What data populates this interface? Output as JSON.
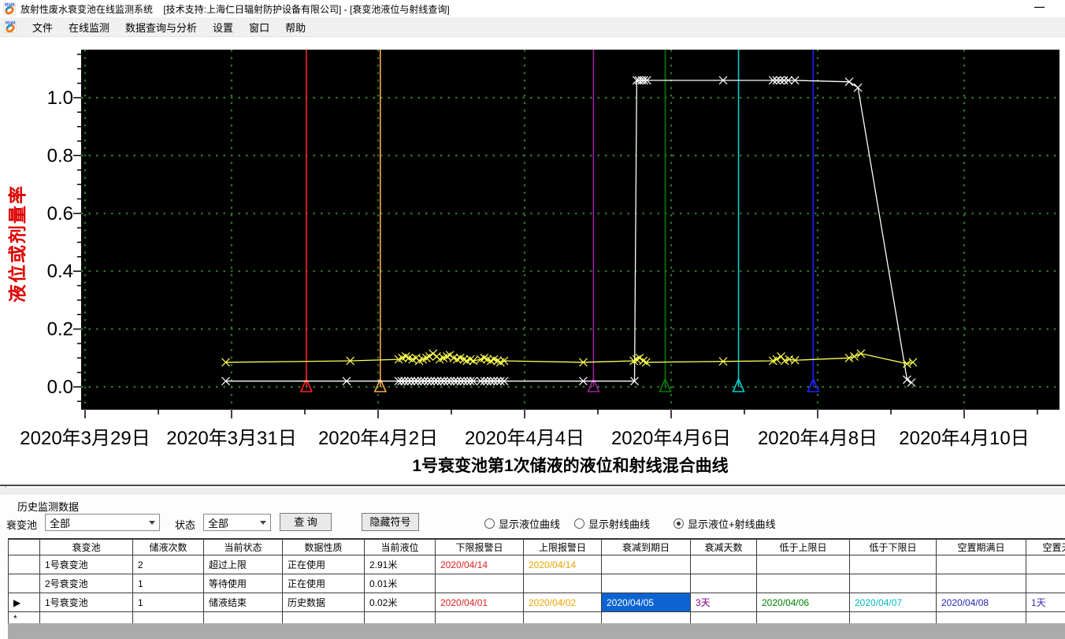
{
  "window": {
    "title": "放射性废水衰变池在线监测系统    [技术支持:上海仁日辐射防护设备有限公司] - [衰变池液位与射线查询]",
    "minimize_glyph": "—"
  },
  "menu": {
    "items": [
      "文件",
      "在线监测",
      "数据查询与分析",
      "设置",
      "窗口",
      "帮助"
    ]
  },
  "chart_data": {
    "type": "line",
    "title": "1号衰变池第1次储液的液位和射线混合曲线",
    "ylabel": "液位或剂量率",
    "ylabel_color": "#dd0000",
    "plot_bg": "#000000",
    "grid_color": "#2b7a2b",
    "grid": "dotted",
    "x_day0": "2020-03-29",
    "x_tick_labels": [
      "2020年3月29日",
      "2020年3月31日",
      "2020年4月2日",
      "2020年4月4日",
      "2020年4月6日",
      "2020年4月8日",
      "2020年4月10日"
    ],
    "x_tick_days": [
      0,
      2,
      4,
      6,
      8,
      10,
      12
    ],
    "x_minor_step_days": 1,
    "xlim_days": [
      -0.05,
      13.3
    ],
    "y_ticks": [
      0.0,
      0.2,
      0.4,
      0.6,
      0.8,
      1.0
    ],
    "ylim": [
      -0.079,
      1.166
    ],
    "marker": "x",
    "series": [
      {
        "name": "液位曲线",
        "color": "#ffffff",
        "points": [
          [
            1.92,
            0.02
          ],
          [
            3.57,
            0.02
          ],
          [
            4.28,
            0.02
          ],
          [
            4.32,
            0.02
          ],
          [
            4.36,
            0.02
          ],
          [
            4.41,
            0.02
          ],
          [
            4.45,
            0.02
          ],
          [
            4.5,
            0.02
          ],
          [
            4.54,
            0.02
          ],
          [
            4.59,
            0.02
          ],
          [
            4.63,
            0.02
          ],
          [
            4.68,
            0.02
          ],
          [
            4.72,
            0.02
          ],
          [
            4.77,
            0.02
          ],
          [
            4.81,
            0.02
          ],
          [
            4.86,
            0.02
          ],
          [
            4.9,
            0.02
          ],
          [
            4.95,
            0.02
          ],
          [
            4.99,
            0.02
          ],
          [
            5.04,
            0.02
          ],
          [
            5.08,
            0.02
          ],
          [
            5.13,
            0.02
          ],
          [
            5.17,
            0.02
          ],
          [
            5.22,
            0.02
          ],
          [
            5.26,
            0.02
          ],
          [
            5.3,
            0.02
          ],
          [
            5.4,
            0.02
          ],
          [
            5.45,
            0.02
          ],
          [
            5.49,
            0.02
          ],
          [
            5.54,
            0.02
          ],
          [
            5.58,
            0.02
          ],
          [
            5.63,
            0.02
          ],
          [
            5.67,
            0.02
          ],
          [
            5.72,
            0.02
          ],
          [
            6.8,
            0.02
          ],
          [
            7.5,
            0.02
          ],
          [
            7.53,
            1.06
          ],
          [
            7.56,
            1.06
          ],
          [
            7.6,
            1.06
          ],
          [
            7.63,
            1.06
          ],
          [
            7.67,
            1.06
          ],
          [
            8.71,
            1.06
          ],
          [
            9.39,
            1.06
          ],
          [
            9.44,
            1.06
          ],
          [
            9.49,
            1.06
          ],
          [
            9.54,
            1.06
          ],
          [
            9.6,
            1.06
          ],
          [
            9.69,
            1.06
          ],
          [
            10.43,
            1.055
          ],
          [
            10.55,
            1.035
          ],
          [
            11.22,
            0.025
          ],
          [
            11.28,
            0.015
          ]
        ]
      },
      {
        "name": "射线曲线",
        "color": "#ffff55",
        "points": [
          [
            1.92,
            0.085
          ],
          [
            3.62,
            0.09
          ],
          [
            4.28,
            0.095
          ],
          [
            4.33,
            0.1
          ],
          [
            4.38,
            0.105
          ],
          [
            4.42,
            0.1
          ],
          [
            4.47,
            0.095
          ],
          [
            4.52,
            0.1
          ],
          [
            4.56,
            0.09
          ],
          [
            4.61,
            0.095
          ],
          [
            4.66,
            0.1
          ],
          [
            4.7,
            0.105
          ],
          [
            4.75,
            0.115
          ],
          [
            4.8,
            0.105
          ],
          [
            4.84,
            0.095
          ],
          [
            4.89,
            0.1
          ],
          [
            4.94,
            0.105
          ],
          [
            4.98,
            0.11
          ],
          [
            5.03,
            0.1
          ],
          [
            5.08,
            0.095
          ],
          [
            5.12,
            0.1
          ],
          [
            5.17,
            0.095
          ],
          [
            5.21,
            0.09
          ],
          [
            5.26,
            0.095
          ],
          [
            5.3,
            0.09
          ],
          [
            5.4,
            0.095
          ],
          [
            5.45,
            0.1
          ],
          [
            5.49,
            0.095
          ],
          [
            5.54,
            0.09
          ],
          [
            5.58,
            0.095
          ],
          [
            5.63,
            0.09
          ],
          [
            5.67,
            0.085
          ],
          [
            5.72,
            0.09
          ],
          [
            6.8,
            0.085
          ],
          [
            7.49,
            0.09
          ],
          [
            7.53,
            0.095
          ],
          [
            7.57,
            0.1
          ],
          [
            7.62,
            0.09
          ],
          [
            7.66,
            0.085
          ],
          [
            8.71,
            0.088
          ],
          [
            9.39,
            0.09
          ],
          [
            9.44,
            0.095
          ],
          [
            9.5,
            0.105
          ],
          [
            9.55,
            0.09
          ],
          [
            9.61,
            0.095
          ],
          [
            9.69,
            0.092
          ],
          [
            10.43,
            0.1
          ],
          [
            10.5,
            0.105
          ],
          [
            10.59,
            0.115
          ],
          [
            11.22,
            0.08
          ],
          [
            11.3,
            0.085
          ]
        ]
      }
    ],
    "event_lines": [
      {
        "name": "下限报警日",
        "date": "2020/04/01",
        "day": 3.02,
        "color": "#ff2020"
      },
      {
        "name": "上限报警日",
        "date": "2020/04/02",
        "day": 4.03,
        "color": "#ffaa44"
      },
      {
        "name": "衰减到期日",
        "date": "2020/04/05",
        "day": 6.94,
        "color": "#a020a0"
      },
      {
        "name": "低于上限日",
        "date": "2020/04/06",
        "day": 7.92,
        "color": "#007d00"
      },
      {
        "name": "低于下限日",
        "date": "2020/04/07",
        "day": 8.92,
        "color": "#00cccc"
      },
      {
        "name": "空置期满日",
        "date": "2020/04/08",
        "day": 9.94,
        "color": "#2020ff"
      }
    ]
  },
  "panel": {
    "group_label": "历史监测数据",
    "pool_label": "衰变池",
    "pool_value": "全部",
    "status_label": "状态",
    "status_value": "全部",
    "query_button": "查 询",
    "hide_symbols_button": "隐藏符号",
    "radios": [
      {
        "label": "显示液位曲线",
        "selected": false
      },
      {
        "label": "显示射线曲线",
        "selected": false
      },
      {
        "label": "显示液位+射线曲线",
        "selected": true
      }
    ]
  },
  "table": {
    "columns": [
      "衰变池",
      "储液次数",
      "当前状态",
      "数据性质",
      "当前液位",
      "下限报警日",
      "上限报警日",
      "衰减到期日",
      "衰减天数",
      "低于上限日",
      "低于下限日",
      "空置期满日",
      "空置天数"
    ],
    "column_text_colors": {
      "5": "#e02020",
      "6": "#eca400",
      "8": "#800080",
      "9": "#008000",
      "10": "#00bcbc",
      "11": "#2424bc",
      "12": "#3a2ab4"
    },
    "selection_bg": "#0c64d2",
    "rows": [
      {
        "selector": "",
        "cells": [
          "1号衰变池",
          "2",
          "超过上限",
          "正在使用",
          "2.91米",
          "2020/04/14",
          "2020/04/14",
          "",
          "",
          "",
          "",
          "",
          ""
        ]
      },
      {
        "selector": "",
        "cells": [
          "2号衰变池",
          "1",
          "等待使用",
          "正在使用",
          "0.01米",
          "",
          "",
          "",
          "",
          "",
          "",
          "",
          ""
        ]
      },
      {
        "selector": "▶",
        "selected_cell": 7,
        "cells": [
          "1号衰变池",
          "1",
          "储液结束",
          "历史数据",
          "0.02米",
          "2020/04/01",
          "2020/04/02",
          "2020/04/05",
          "3天",
          "2020/04/06",
          "2020/04/07",
          "2020/04/08",
          "1天"
        ]
      },
      {
        "selector": "*",
        "cells": [
          "",
          "",
          "",
          "",
          "",
          "",
          "",
          "",
          "",
          "",
          "",
          "",
          ""
        ]
      }
    ]
  }
}
